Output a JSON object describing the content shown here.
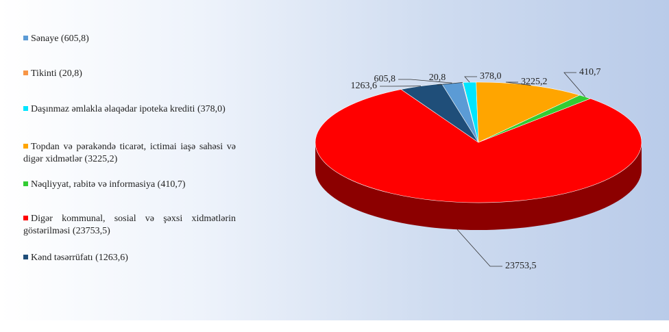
{
  "chart_data": {
    "type": "pie3d",
    "categories": [
      "Sənaye (605,8)",
      "Tikinti (20,8)",
      "Daşınmaz əmlakla əlaqədar ipoteka krediti (378,0)",
      "Topdan və pərakəndə ticarət, ictimai iaşə sahəsi və digər xidmətlər  (3225,2)",
      "Nəqliyyat,  rabitə və informasiya  (410,7)",
      "Digər kommunal,  sosial və şəxsi xidmətlərin göstərilməsi  (23753,5)",
      "Kənd təsərrüfatı (1263,6)"
    ],
    "values": [
      605.8,
      20.8,
      378.0,
      3225.2,
      410.7,
      23753.5,
      1263.6
    ],
    "value_labels": [
      "605,8",
      "20,8",
      "378,0",
      "3225,2",
      "410,7",
      "23753,5",
      "1263,6"
    ],
    "colors": [
      "#5b9bd5",
      "#f79646",
      "#00e5ff",
      "#ffa500",
      "#33cc33",
      "#ff0000",
      "#1f4e79"
    ],
    "legend": "left"
  }
}
